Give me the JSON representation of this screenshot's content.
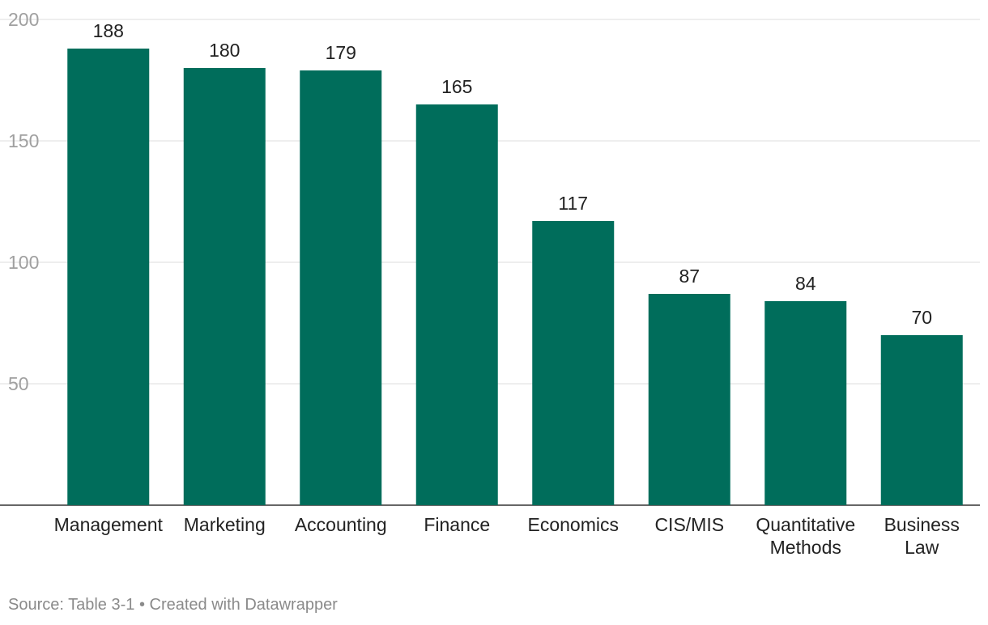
{
  "chart_data": {
    "type": "bar",
    "categories": [
      "Management",
      "Marketing",
      "Accounting",
      "Finance",
      "Economics",
      "CIS/MIS",
      "Quantitative Methods",
      "Business Law"
    ],
    "values": [
      188,
      180,
      179,
      165,
      117,
      87,
      84,
      70
    ],
    "yticks": [
      50,
      100,
      150,
      200
    ],
    "ylim": [
      0,
      200
    ],
    "grid": true,
    "bar_color": "#006d5b"
  },
  "footer": {
    "source": "Source: Table 3-1 • Created with Datawrapper"
  }
}
